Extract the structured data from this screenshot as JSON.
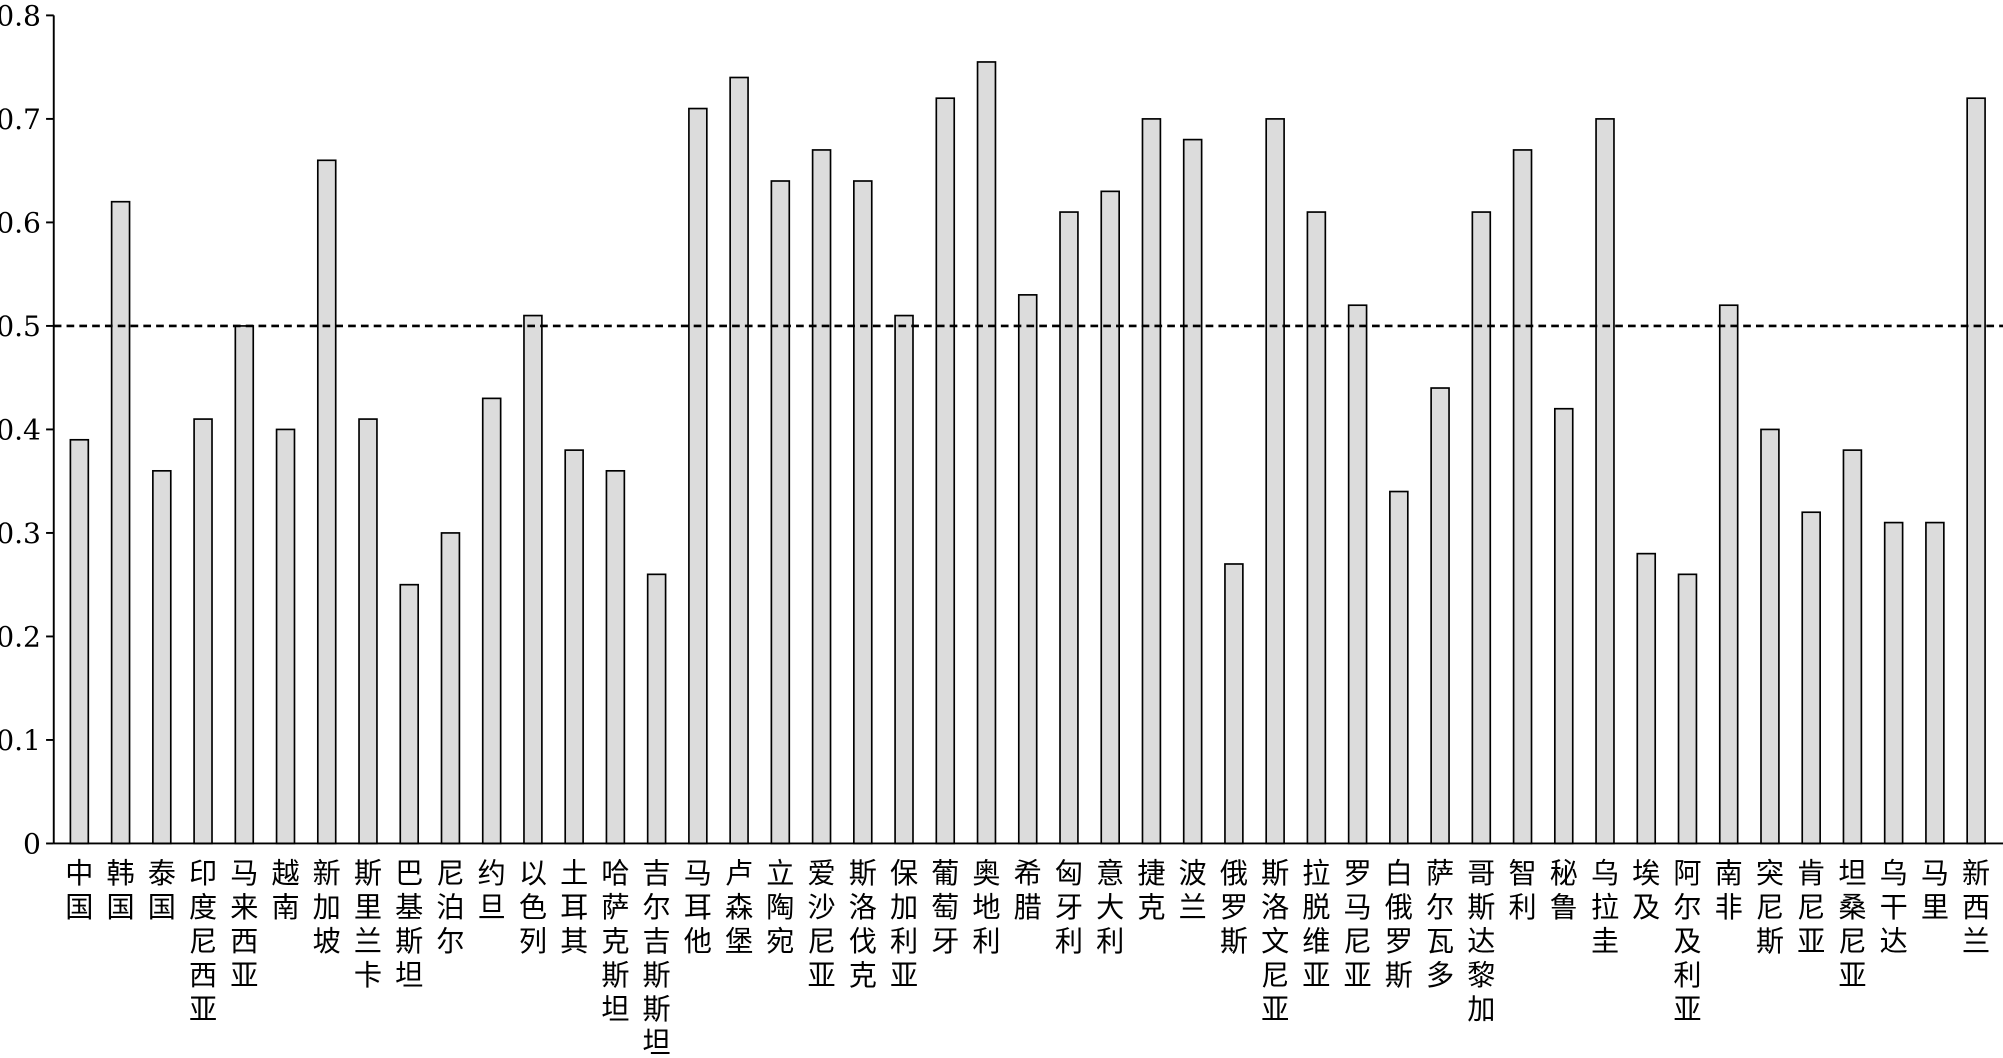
{
  "chart_data": {
    "type": "bar",
    "categories": [
      "中国",
      "韩国",
      "泰国",
      "印度尼西亚",
      "马来西亚",
      "越南",
      "新加坡",
      "斯里兰卡",
      "巴基斯坦",
      "尼泊尔",
      "约旦",
      "以色列",
      "土耳其",
      "哈萨克斯坦",
      "吉尔吉斯斯坦",
      "马耳他",
      "卢森堡",
      "立陶宛",
      "爱沙尼亚",
      "斯洛伐克",
      "保加利亚",
      "葡萄牙",
      "奥地利",
      "希腊",
      "匈牙利",
      "意大利",
      "捷克",
      "波兰",
      "俄罗斯",
      "斯洛文尼亚",
      "拉脱维亚",
      "罗马尼亚",
      "白俄罗斯",
      "萨尔瓦多",
      "哥斯达黎加",
      "智利",
      "秘鲁",
      "乌拉圭",
      "埃及",
      "阿尔及利亚",
      "南非",
      "突尼斯",
      "肯尼亚",
      "坦桑尼亚",
      "乌干达",
      "马里",
      "新西兰"
    ],
    "values": [
      0.39,
      0.62,
      0.36,
      0.41,
      0.5,
      0.4,
      0.66,
      0.41,
      0.25,
      0.3,
      0.43,
      0.51,
      0.38,
      0.36,
      0.26,
      0.71,
      0.74,
      0.64,
      0.67,
      0.64,
      0.51,
      0.72,
      0.755,
      0.53,
      0.61,
      0.63,
      0.7,
      0.68,
      0.27,
      0.7,
      0.61,
      0.52,
      0.34,
      0.44,
      0.61,
      0.67,
      0.42,
      0.7,
      0.28,
      0.26,
      0.52,
      0.4,
      0.32,
      0.38,
      0.31,
      0.31,
      0.72
    ],
    "color": "#dcdcdc",
    "ylim": [
      0,
      0.8
    ],
    "yticks": [
      0,
      0.1,
      0.2,
      0.3,
      0.4,
      0.5,
      0.6,
      0.7,
      0.8
    ],
    "reference_line": 0.5,
    "grid": false
  }
}
